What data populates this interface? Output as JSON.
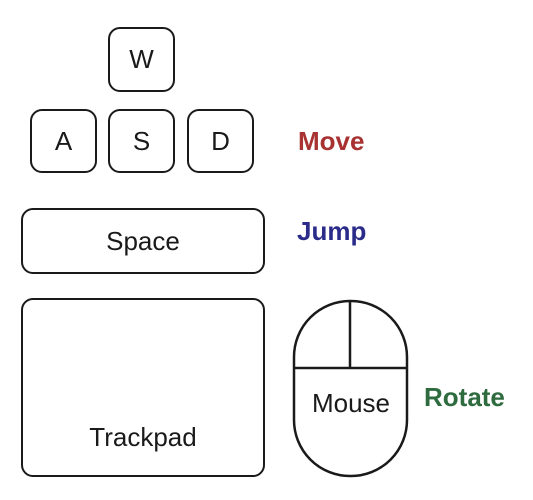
{
  "keys": {
    "w": "W",
    "a": "A",
    "s": "S",
    "d": "D",
    "space": "Space"
  },
  "trackpad": {
    "label": "Trackpad"
  },
  "mouse": {
    "label": "Mouse"
  },
  "actions": {
    "move": {
      "label": "Move",
      "color": "#a83232"
    },
    "jump": {
      "label": "Jump",
      "color": "#2b2b8a"
    },
    "rotate": {
      "label": "Rotate",
      "color": "#2e6b3f"
    }
  }
}
